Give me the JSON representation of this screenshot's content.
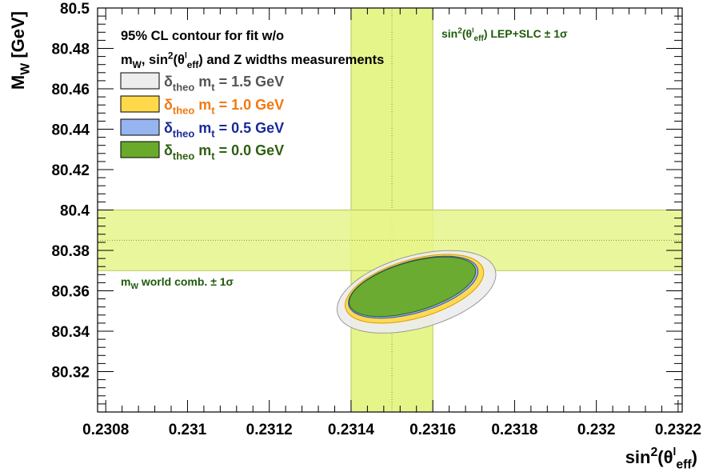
{
  "chart_data": {
    "type": "contour",
    "xlabel": "sin²(θᴵeff)",
    "ylabel": "MW [GeV]",
    "xlim": [
      0.23078,
      0.23221
    ],
    "ylim": [
      80.3,
      80.5
    ],
    "xticks": [
      {
        "value": 0.2308,
        "label": "0.2308"
      },
      {
        "value": 0.231,
        "label": "0.231"
      },
      {
        "value": 0.2312,
        "label": "0.2312"
      },
      {
        "value": 0.2314,
        "label": "0.2314"
      },
      {
        "value": 0.2316,
        "label": "0.2316"
      },
      {
        "value": 0.2318,
        "label": "0.2318"
      },
      {
        "value": 0.232,
        "label": "0.232"
      },
      {
        "value": 0.2322,
        "label": "0.2322"
      }
    ],
    "yticks": [
      {
        "value": 80.32,
        "label": "80.32"
      },
      {
        "value": 80.34,
        "label": "80.34"
      },
      {
        "value": 80.36,
        "label": "80.36"
      },
      {
        "value": 80.38,
        "label": "80.38"
      },
      {
        "value": 80.4,
        "label": "80.4"
      },
      {
        "value": 80.42,
        "label": "80.42"
      },
      {
        "value": 80.44,
        "label": "80.44"
      },
      {
        "value": 80.46,
        "label": "80.46"
      },
      {
        "value": 80.48,
        "label": "80.48"
      },
      {
        "value": 80.5,
        "label": "80.5"
      }
    ],
    "bands": [
      {
        "label": "sin²(θᴵeff) LEP+SLC ± 1σ",
        "orientation": "vertical",
        "central": 0.2315,
        "low": 0.2314,
        "high": 0.2316,
        "color": "#e6f58a",
        "label_color": "#1e5b0a"
      },
      {
        "label": "mW world comb. ± 1σ",
        "orientation": "horizontal",
        "central": 80.385,
        "low": 80.37,
        "high": 80.4,
        "color": "#e6f58a",
        "label_color": "#1e5b0a"
      }
    ],
    "legend_title": [
      "95% CL contour for fit w/o",
      "mW, sin²(θᴵeff) and Z widths measurements"
    ],
    "series": [
      {
        "name": "δtheo mt = 1.5 GeV",
        "fill": "#ededed",
        "stroke": "#9a9a9a",
        "text_color": "#555555",
        "center": [
          0.23156,
          80.3595
        ],
        "semi_axes": [
          0.0002,
          0.018
        ],
        "rotation": -0.27
      },
      {
        "name": "δtheo mt = 1.0 GeV",
        "fill": "#ffd94a",
        "stroke": "#d99a00",
        "text_color": "#f07a10",
        "center": [
          0.231555,
          80.361
        ],
        "semi_axes": [
          0.000175,
          0.0145
        ],
        "rotation": -0.28
      },
      {
        "name": "δtheo mt = 0.5 GeV",
        "fill": "#96b5f0",
        "stroke": "#3050c0",
        "text_color": "#1a2a9a",
        "center": [
          0.231552,
          80.3618
        ],
        "semi_axes": [
          0.000164,
          0.0128
        ],
        "rotation": -0.28
      },
      {
        "name": "δtheo mt = 0.0 GeV",
        "fill": "#6aaa2a",
        "stroke": "#2f6010",
        "text_color": "#2e6010",
        "center": [
          0.23155,
          80.362
        ],
        "semi_axes": [
          0.00016,
          0.0122
        ],
        "rotation": -0.28
      }
    ]
  }
}
